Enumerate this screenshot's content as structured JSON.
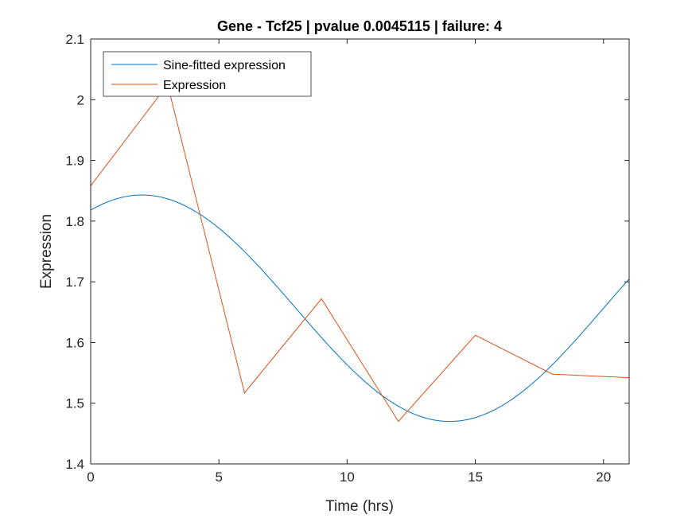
{
  "chart_data": {
    "type": "line",
    "title": "Gene - Tcf25 | pvalue 0.0045115 | failure: 4",
    "xlabel": "Time (hrs)",
    "ylabel": "Expression",
    "xlim": [
      0,
      21
    ],
    "ylim": [
      1.4,
      2.1
    ],
    "xticks": [
      0,
      5,
      10,
      15,
      20
    ],
    "xtick_labels": [
      "0",
      "5",
      "10",
      "15",
      "20"
    ],
    "yticks": [
      1.4,
      1.5,
      1.6,
      1.7,
      1.8,
      1.9,
      2.0,
      2.1
    ],
    "ytick_labels": [
      "1.4",
      "1.5",
      "1.6",
      "1.7",
      "1.8",
      "1.9",
      "2",
      "2.1"
    ],
    "grid": false,
    "legend_position": "top-left",
    "series": [
      {
        "name": "Sine-fitted expression",
        "color": "#0072BD",
        "model": {
          "mean": 1.6565,
          "amplitude": 0.1865,
          "period": 24,
          "peak": 2.0
        }
      },
      {
        "name": "Expression",
        "color": "#D95319",
        "x": [
          0,
          3,
          6,
          9,
          12,
          15,
          18,
          21
        ],
        "y": [
          1.858,
          2.025,
          1.517,
          1.672,
          1.47,
          1.612,
          1.548,
          1.542
        ]
      }
    ]
  }
}
